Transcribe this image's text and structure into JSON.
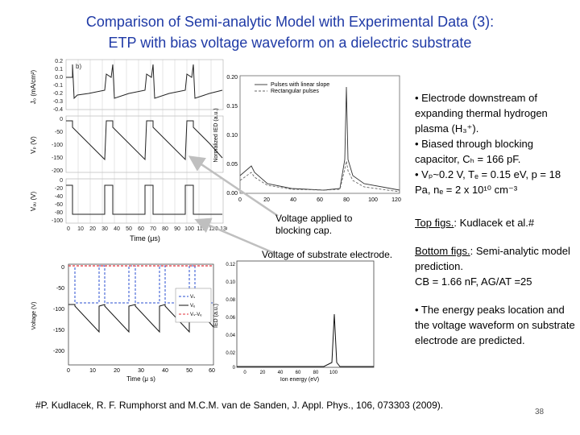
{
  "title": {
    "line1": "Comparison of Semi-analytic Model with Experimental Data (3):",
    "line2": "ETP with bias voltage waveform on a dielectric substrate"
  },
  "top_left_figure": {
    "panel_label": "b)",
    "ylabel_top": "J₀ (mA/cm²)",
    "ylabel_mid": "Vₚ (V)",
    "ylabel_bot": "Vₔᵤ (V)",
    "xlabel": "Time (μs)",
    "ticks_top": [
      "0.2",
      "0.1",
      "0.0",
      "-0.1",
      "-0.2",
      "-0.3",
      "-0.4"
    ],
    "ticks_mid": [
      "0",
      "-50",
      "-100",
      "-150",
      "-200"
    ],
    "ticks_bot": [
      "0",
      "-20",
      "-40",
      "-60",
      "-80",
      "-100"
    ],
    "ticks_x": [
      "0",
      "10",
      "20",
      "30",
      "40",
      "50",
      "60",
      "70",
      "80",
      "90",
      "100",
      "110",
      "120",
      "130"
    ]
  },
  "top_right_figure": {
    "ylabel": "Normalized IED (a.u.)",
    "legend": [
      "Pulses with linear slope",
      "Rectangular pulses"
    ],
    "ticks_y": [
      "0.20",
      "0.15",
      "0.10",
      "0.05",
      "0.00"
    ],
    "ticks_x": [
      "0",
      "20",
      "40",
      "60",
      "80",
      "100",
      "120"
    ]
  },
  "bottom_left_figure": {
    "ylabel": "Voltage (V)",
    "xlabel": "Time (μ s)",
    "legend": [
      "Vₛ",
      "Vₑ",
      "Vₛ-Vₑ"
    ],
    "ticks_y": [
      "0",
      "-50",
      "-100",
      "-150",
      "-200"
    ],
    "ticks_x": [
      "0",
      "10",
      "20",
      "30",
      "40",
      "50",
      "60"
    ]
  },
  "bottom_right_figure": {
    "ylabel": "IED (a.u.)",
    "xlabel": "Ion energy (eV)",
    "ticks_y": [
      "0.12",
      "0.10",
      "0.08",
      "0.06",
      "0.04",
      "0.02",
      "0"
    ],
    "ticks_x": [
      "0",
      "20",
      "40",
      "60",
      "80",
      "100"
    ]
  },
  "labels": {
    "voltage_applied": "Voltage applied to blocking cap.",
    "voltage_substrate": "Voltage of substrate electrode."
  },
  "bullets": {
    "b1": "• Electrode downstream of expanding thermal hydrogen plasma (H₃⁺).",
    "b2": "• Biased through blocking capacitor, Cₕ = 166 pF.",
    "b3": "• Vₚ~0.2 V, Tₑ = 0.15 eV, p = 18 Pa, nₑ = 2 x 10¹⁰ cm⁻³",
    "top_figs_label": "Top figs.",
    "top_figs_text": ": Kudlacek et al.#",
    "bottom_figs_label": "Bottom figs.",
    "bottom_figs_text": ": Semi-analytic model prediction.",
    "cb_line": "CB = 1.66 nF, AG/AT =25",
    "b4": "• The energy peaks location and the voltage waveform on substrate electrode are predicted."
  },
  "footer": "#P. Kudlacek, R. F. Rumphorst and M.C.M. van de Sanden, J. Appl. Phys., 106, 073303 (2009).",
  "page_number": "38",
  "colors": {
    "title": "#1f3aa6",
    "arrow": "#bfbfbf",
    "model_dashed": "#e0303a",
    "model_blue": "#2a4fd0"
  }
}
